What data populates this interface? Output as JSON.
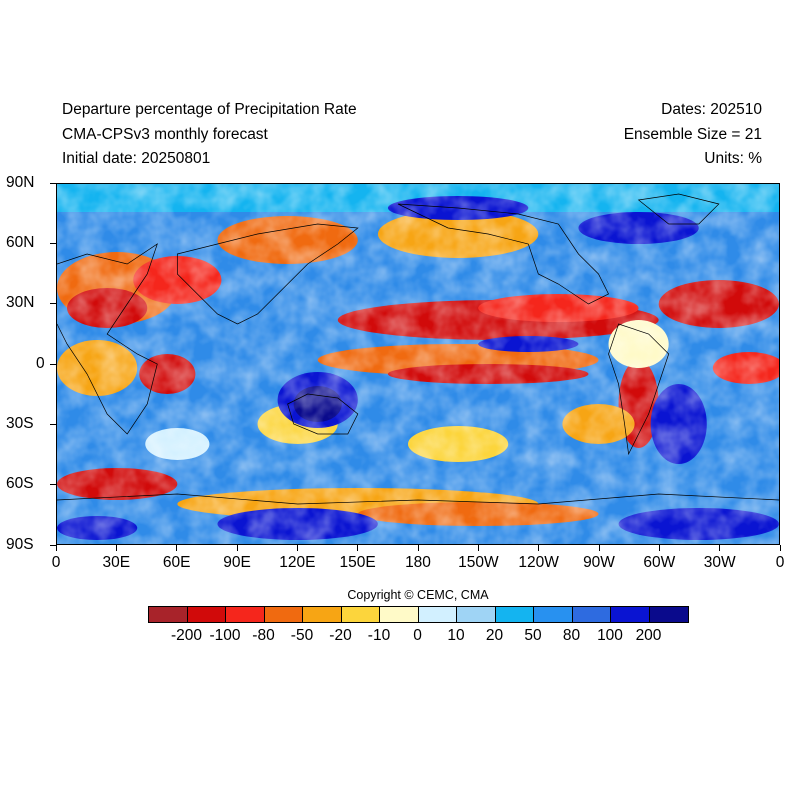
{
  "header": {
    "title": "Departure percentage of Precipitation Rate",
    "model": "CMA-CPSv3 monthly forecast",
    "initial_date": "Initial date: 20250801",
    "dates": "Dates: 202510",
    "ensemble": "Ensemble Size = 21",
    "units": "Units: %"
  },
  "map": {
    "lat_labels": [
      "90N",
      "60N",
      "30N",
      "0",
      "30S",
      "60S",
      "90S"
    ],
    "lon_labels": [
      "0",
      "30E",
      "60E",
      "90E",
      "120E",
      "150E",
      "180",
      "150W",
      "120W",
      "90W",
      "60W",
      "30W",
      "0"
    ]
  },
  "copyright": "Copyright © CEMC, CMA",
  "colorbar": {
    "colors": [
      "#a8232a",
      "#d10a0a",
      "#f5261c",
      "#f06a10",
      "#f7a514",
      "#fcd53c",
      "#fffac8",
      "#d2f0ff",
      "#9fd4f5",
      "#14b4f0",
      "#2891f0",
      "#2e6be0",
      "#0a14d2",
      "#0a0a8c"
    ],
    "labels": [
      "-200",
      "-100",
      "-80",
      "-50",
      "-20",
      "-10",
      "0",
      "10",
      "20",
      "50",
      "80",
      "100",
      "200"
    ]
  }
}
